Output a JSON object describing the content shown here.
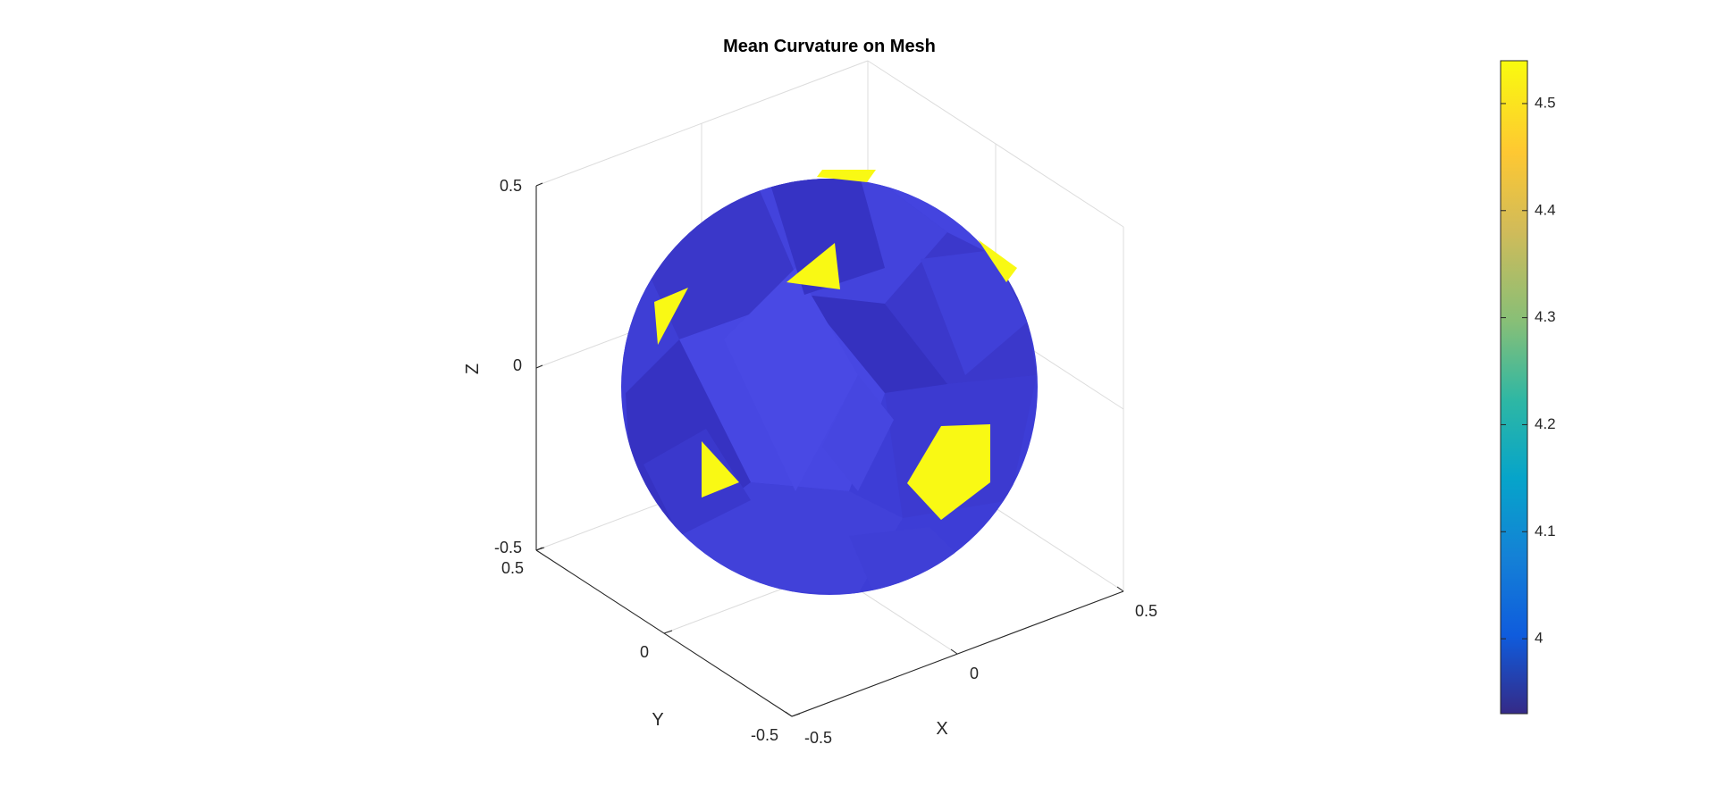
{
  "chart_data": {
    "type": "surface-3d",
    "title": "Mean Curvature on Mesh",
    "xlabel": "X",
    "ylabel": "Y",
    "zlabel": "Z",
    "xlim": [
      -0.5,
      0.5
    ],
    "ylim": [
      -0.5,
      0.5
    ],
    "zlim": [
      -0.5,
      0.5
    ],
    "x_ticks": [
      "-0.5",
      "0",
      "0.5"
    ],
    "y_ticks": [
      "-0.5",
      "0",
      "0.5"
    ],
    "z_ticks": [
      "-0.5",
      "0",
      "0.5"
    ],
    "grid": true,
    "surface": "sphere mesh colored by mean curvature",
    "base_curvature_color": "#3f3fd9",
    "high_curvature_color": "#f9f914",
    "colorbar": {
      "ticks": [
        "4",
        "4.1",
        "4.2",
        "4.3",
        "4.4",
        "4.5"
      ],
      "tick_values": [
        4.0,
        4.1,
        4.2,
        4.3,
        4.4,
        4.5
      ],
      "range": [
        3.93,
        4.54
      ],
      "colormap": "parula",
      "colors": [
        "#352a87",
        "#0f5cdd",
        "#1481d6",
        "#06a4ca",
        "#2eb7a4",
        "#87bf77",
        "#d1bb59",
        "#fec832",
        "#f9fb0e"
      ]
    }
  }
}
